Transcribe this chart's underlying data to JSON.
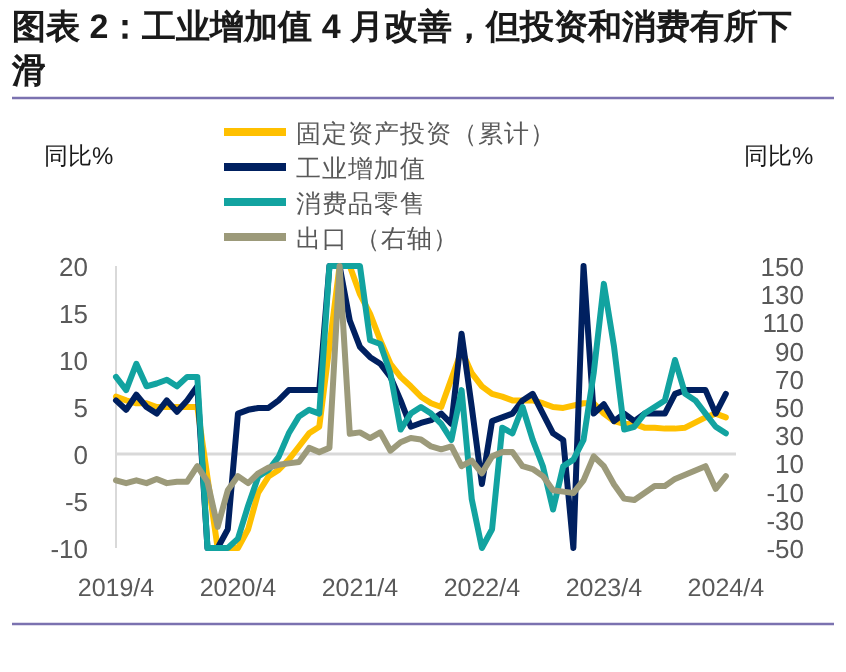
{
  "chart_data": {
    "type": "line",
    "title": "图表 2：工业增加值 4 月改善，但投资和消费有所下滑",
    "ylabel": "同比%",
    "y2label": "同比%",
    "legend": "top",
    "xlim": [
      "2019-04",
      "2024-05"
    ],
    "xticks": [
      {
        "value": "2019-04",
        "label": "2019/4"
      },
      {
        "value": "2020-04",
        "label": "2020/4"
      },
      {
        "value": "2021-04",
        "label": "2021/4"
      },
      {
        "value": "2022-04",
        "label": "2022/4"
      },
      {
        "value": "2023-04",
        "label": "2023/4"
      },
      {
        "value": "2024-04",
        "label": "2024/4"
      }
    ],
    "ylim": [
      -10,
      20
    ],
    "yticks": [
      -10,
      -5,
      0,
      5,
      10,
      15,
      20
    ],
    "y2lim": [
      -50,
      150
    ],
    "y2ticks": [
      -50,
      -30,
      -10,
      10,
      30,
      50,
      70,
      90,
      110,
      130,
      150
    ],
    "ref_lines": [
      {
        "axis": "y",
        "value": 0,
        "color": "#d9d9d9"
      }
    ],
    "series": [
      {
        "name": "固定资产投资（累计）",
        "color": "#ffc000",
        "x": [
          "2019-04",
          "2019-05",
          "2019-06",
          "2019-07",
          "2019-08",
          "2019-09",
          "2019-10",
          "2019-11",
          "2019-12",
          "2020-02",
          "2020-03",
          "2020-04",
          "2020-05",
          "2020-06",
          "2020-07",
          "2020-08",
          "2020-09",
          "2020-10",
          "2020-11",
          "2020-12",
          "2021-02",
          "2021-03",
          "2021-04",
          "2021-05",
          "2021-06",
          "2021-07",
          "2021-08",
          "2021-09",
          "2021-10",
          "2021-11",
          "2021-12",
          "2022-02",
          "2022-03",
          "2022-04",
          "2022-05",
          "2022-06",
          "2022-07",
          "2022-08",
          "2022-09",
          "2022-10",
          "2022-11",
          "2022-12",
          "2023-02",
          "2023-03",
          "2023-04",
          "2023-05",
          "2023-06",
          "2023-07",
          "2023-08",
          "2023-09",
          "2023-10",
          "2023-11",
          "2023-12",
          "2024-02",
          "2024-03",
          "2024-04"
        ],
        "values": [
          6.1,
          5.7,
          5.4,
          5.4,
          5,
          5,
          5,
          5,
          5,
          -10,
          -10,
          -10,
          -8,
          -4.1,
          -2.4,
          -1.7,
          -0.6,
          0.8,
          2.2,
          2.9,
          20,
          20,
          17,
          14.9,
          12.1,
          9.6,
          8.2,
          7.2,
          6.1,
          5.4,
          5,
          11,
          8.6,
          7.2,
          6.4,
          6.1,
          5.7,
          5.7,
          5.7,
          5.4,
          5,
          4.9,
          5.4,
          5.4,
          4.3,
          3.5,
          3.2,
          3.2,
          2.8,
          2.8,
          2.7,
          2.7,
          2.8,
          3.9,
          4.3,
          3.9
        ]
      },
      {
        "name": "工业增加值",
        "color": "#002060",
        "values": [
          5.7,
          4.7,
          6.3,
          5,
          4.3,
          5.7,
          4.5,
          5.7,
          7.2,
          -10,
          -10,
          -8,
          4.3,
          4.7,
          4.9,
          4.9,
          5.7,
          6.8,
          6.8,
          6.8,
          6.8,
          20,
          20,
          14.2,
          11.4,
          10.3,
          9.6,
          8.2,
          5.7,
          2.9,
          3.3,
          3.6,
          4.3,
          3.2,
          12.8,
          5,
          -3.2,
          3.5,
          3.9,
          4.3,
          5.7,
          6.4,
          4.3,
          2.2,
          1.5,
          -10,
          20,
          4.3,
          5.3,
          3.5,
          4.3,
          3.5,
          4.3,
          4.3,
          4.3,
          6.4,
          6.8,
          6.8,
          6.8,
          4.3,
          6.4
        ]
      },
      {
        "name": "消费品零售",
        "color": "#12a3a0",
        "values": [
          8.2,
          6.8,
          9.6,
          7.2,
          7.5,
          7.9,
          7.2,
          8.2,
          8.2,
          -10,
          -10,
          -10,
          -9,
          -5.5,
          -2.4,
          -1.7,
          -0.3,
          2.2,
          4,
          4.7,
          4.3,
          20,
          20,
          20,
          20,
          12.1,
          11.7,
          8.6,
          2.6,
          4.3,
          5,
          4.3,
          3.2,
          1.5,
          6.8,
          -4.8,
          -10,
          -8,
          2.8,
          2.2,
          5,
          1.5,
          -1.3,
          -5.9,
          -1.3,
          -0.6,
          1.5,
          8.6,
          18.1,
          11.4,
          2.6,
          2.9,
          4.3,
          5,
          5.7,
          10,
          6.4,
          5.7,
          4.3,
          2.9,
          2.2
        ]
      },
      {
        "name": "出口 （右轴）",
        "color": "#9c9a7a",
        "axis": "y2",
        "values": [
          -2,
          -4,
          -2,
          -4,
          -1,
          -4,
          -3,
          -3,
          8,
          -3,
          -35,
          -9,
          1,
          -4,
          3,
          7,
          9,
          10,
          11,
          21,
          18,
          21,
          150,
          31,
          32,
          28,
          32,
          19,
          25,
          28,
          27,
          22,
          20,
          22,
          8,
          12,
          3,
          15,
          18,
          18,
          8,
          6,
          1,
          -9,
          -10,
          -11,
          -2,
          15,
          8,
          -5,
          -15,
          -16,
          -11,
          -6,
          -6,
          -1,
          2,
          5,
          8,
          -8,
          1
        ]
      }
    ],
    "x": [
      "2019-04",
      "2019-05",
      "2019-06",
      "2019-07",
      "2019-08",
      "2019-09",
      "2019-10",
      "2019-11",
      "2019-12",
      "2020-01",
      "2020-02",
      "2020-03",
      "2020-04",
      "2020-05",
      "2020-06",
      "2020-07",
      "2020-08",
      "2020-09",
      "2020-10",
      "2020-11",
      "2020-12",
      "2021-01",
      "2021-02",
      "2021-03",
      "2021-04",
      "2021-05",
      "2021-06",
      "2021-07",
      "2021-08",
      "2021-09",
      "2021-10",
      "2021-11",
      "2021-12",
      "2022-01",
      "2022-02",
      "2022-03",
      "2022-04",
      "2022-05",
      "2022-06",
      "2022-07",
      "2022-08",
      "2022-09",
      "2022-10",
      "2022-11",
      "2022-12",
      "2023-01",
      "2023-02",
      "2023-03",
      "2023-04",
      "2023-05",
      "2023-06",
      "2023-07",
      "2023-08",
      "2023-09",
      "2023-10",
      "2023-11",
      "2023-12",
      "2024-01",
      "2024-02",
      "2024-03",
      "2024-04"
    ]
  }
}
